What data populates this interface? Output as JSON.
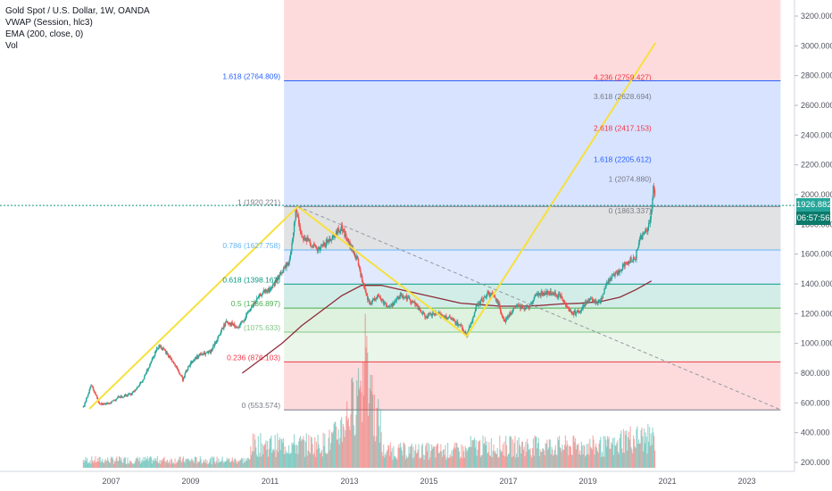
{
  "legend": {
    "title": "Gold Spot / U.S. Dollar, 1W, OANDA",
    "vwap": "VWAP (Session, hlc3)",
    "ema": "EMA (200, close, 0)",
    "vol": "Vol"
  },
  "price_badge": {
    "price": "1926.882",
    "countdown": "06:57:56"
  },
  "colors": {
    "up": "#26a69a",
    "down": "#ef5350",
    "ema": "#8e2c3a",
    "zigzag": "#f7e03c",
    "current_line": "#089981",
    "price_badge_bg": "#26a69a",
    "countdown_bg": "#0b7a6b"
  },
  "chart_data": {
    "type": "candlestick",
    "title": "Gold Spot / U.S. Dollar, 1W, OANDA",
    "x_ticks": [
      "2007",
      "2009",
      "2011",
      "2013",
      "2015",
      "2017",
      "2019",
      "2021",
      "2023"
    ],
    "y_ticks": [
      "200.000",
      "400.000",
      "600.000",
      "800.000",
      "1000.000",
      "1200.000",
      "1400.000",
      "1600.000",
      "1800.000",
      "2000.000",
      "2200.000",
      "2400.000",
      "2600.000",
      "2800.000",
      "3000.000",
      "3200.000"
    ],
    "y_range": [
      120,
      3300
    ],
    "x_range": [
      2006.0,
      2024.2
    ],
    "current_price": 1926.882,
    "price_path": [
      [
        2006.3,
        570
      ],
      [
        2006.5,
        720
      ],
      [
        2006.7,
        600
      ],
      [
        2006.9,
        590
      ],
      [
        2007.2,
        640
      ],
      [
        2007.5,
        660
      ],
      [
        2007.8,
        750
      ],
      [
        2008.0,
        880
      ],
      [
        2008.2,
        990
      ],
      [
        2008.5,
        900
      ],
      [
        2008.8,
        760
      ],
      [
        2009.0,
        870
      ],
      [
        2009.2,
        920
      ],
      [
        2009.5,
        940
      ],
      [
        2009.9,
        1150
      ],
      [
        2010.2,
        1100
      ],
      [
        2010.5,
        1230
      ],
      [
        2010.8,
        1340
      ],
      [
        2011.0,
        1360
      ],
      [
        2011.3,
        1480
      ],
      [
        2011.5,
        1560
      ],
      [
        2011.65,
        1900
      ],
      [
        2011.8,
        1720
      ],
      [
        2012.0,
        1680
      ],
      [
        2012.2,
        1620
      ],
      [
        2012.5,
        1700
      ],
      [
        2012.8,
        1780
      ],
      [
        2013.0,
        1660
      ],
      [
        2013.2,
        1560
      ],
      [
        2013.35,
        1380
      ],
      [
        2013.5,
        1260
      ],
      [
        2013.7,
        1320
      ],
      [
        2014.0,
        1240
      ],
      [
        2014.3,
        1330
      ],
      [
        2014.6,
        1280
      ],
      [
        2014.9,
        1180
      ],
      [
        2015.2,
        1200
      ],
      [
        2015.5,
        1170
      ],
      [
        2015.8,
        1120
      ],
      [
        2015.95,
        1050
      ],
      [
        2016.2,
        1250
      ],
      [
        2016.5,
        1340
      ],
      [
        2016.7,
        1300
      ],
      [
        2016.9,
        1150
      ],
      [
        2017.2,
        1250
      ],
      [
        2017.5,
        1240
      ],
      [
        2017.7,
        1330
      ],
      [
        2018.0,
        1340
      ],
      [
        2018.3,
        1320
      ],
      [
        2018.6,
        1200
      ],
      [
        2018.8,
        1220
      ],
      [
        2019.0,
        1290
      ],
      [
        2019.3,
        1280
      ],
      [
        2019.5,
        1420
      ],
      [
        2019.8,
        1490
      ],
      [
        2020.0,
        1550
      ],
      [
        2020.2,
        1580
      ],
      [
        2020.3,
        1700
      ],
      [
        2020.5,
        1770
      ],
      [
        2020.6,
        1880
      ],
      [
        2020.65,
        2070
      ],
      [
        2020.7,
        1930
      ]
    ],
    "ema_path": [
      [
        2010.3,
        800
      ],
      [
        2010.8,
        900
      ],
      [
        2011.3,
        1000
      ],
      [
        2011.8,
        1120
      ],
      [
        2012.3,
        1220
      ],
      [
        2012.8,
        1320
      ],
      [
        2013.3,
        1390
      ],
      [
        2013.8,
        1390
      ],
      [
        2014.3,
        1360
      ],
      [
        2014.8,
        1330
      ],
      [
        2015.3,
        1300
      ],
      [
        2015.8,
        1270
      ],
      [
        2016.3,
        1260
      ],
      [
        2016.8,
        1250
      ],
      [
        2017.3,
        1250
      ],
      [
        2017.8,
        1255
      ],
      [
        2018.3,
        1265
      ],
      [
        2018.8,
        1270
      ],
      [
        2019.3,
        1280
      ],
      [
        2019.8,
        1310
      ],
      [
        2020.2,
        1360
      ],
      [
        2020.6,
        1420
      ]
    ],
    "zigzag": [
      [
        2006.45,
        560
      ],
      [
        2011.7,
        1920
      ],
      [
        2015.95,
        1050
      ],
      [
        2020.7,
        3020
      ]
    ],
    "trendline": [
      [
        2011.7,
        1920
      ],
      [
        2023.8,
        560
      ]
    ],
    "fib_levels_left": [
      {
        "label": "1.618 (2764.809)",
        "price": 2764.809,
        "color": "#2962ff"
      },
      {
        "label": "1 (1920.221)",
        "price": 1920.221,
        "color": "#787b86"
      },
      {
        "label": "0.786 (1627.758)",
        "price": 1627.758,
        "color": "#64b5f6"
      },
      {
        "label": "0.618 (1398.162)",
        "price": 1398.162,
        "color": "#089981"
      },
      {
        "label": "0.5 (1236.897)",
        "price": 1236.897,
        "color": "#4caf50"
      },
      {
        "label": "(1075.633)",
        "price": 1075.633,
        "color": "#81c784"
      },
      {
        "label": "0.236 (876.103)",
        "price": 876.103,
        "color": "#f23645"
      },
      {
        "label": "0 (553.574)",
        "price": 553.574,
        "color": "#787b86"
      }
    ],
    "fib_levels_right": [
      {
        "label": "4.236 (2759.427)",
        "price": 2759.427,
        "color": "#f23645"
      },
      {
        "label": "3.618 (2628.694)",
        "price": 2628.694,
        "color": "#787b86"
      },
      {
        "label": "2.618 (2417.153)",
        "price": 2417.153,
        "color": "#f23645"
      },
      {
        "label": "1.618 (2205.612)",
        "price": 2205.612,
        "color": "#2962ff"
      },
      {
        "label": "1 (2074.880)",
        "price": 2074.88,
        "color": "#787b86"
      },
      {
        "label": "0 (1863.337)",
        "price": 1863.337,
        "color": "#787b86"
      }
    ]
  }
}
